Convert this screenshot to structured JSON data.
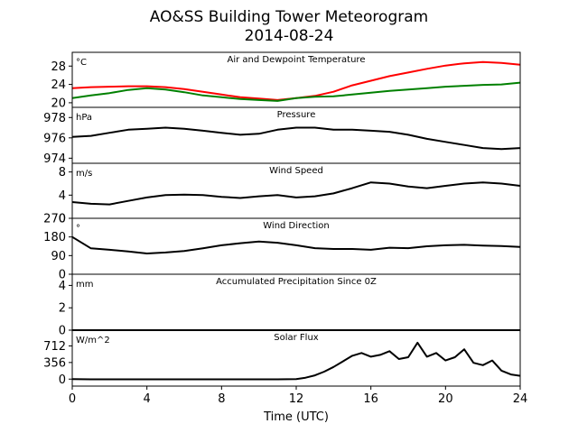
{
  "figure": {
    "title_line1": "AO&SS Building Tower Meteorogram",
    "title_line2": "2014-08-24",
    "xlabel": "Time (UTC)",
    "xticks": [
      "0",
      "4",
      "8",
      "12",
      "16",
      "20",
      "24"
    ]
  },
  "chart_data": [
    {
      "type": "line",
      "title": "Air and Dewpoint Temperature",
      "unit": "°C",
      "ylim": [
        19,
        31
      ],
      "yticks": [
        "20",
        "24",
        "28"
      ],
      "x": [
        0,
        1,
        2,
        3,
        4,
        5,
        6,
        7,
        8,
        9,
        10,
        11,
        12,
        13,
        14,
        15,
        16,
        17,
        18,
        19,
        20,
        21,
        22,
        23,
        24
      ],
      "series": [
        {
          "color": "#ff0000",
          "values": [
            23.2,
            23.4,
            23.5,
            23.6,
            23.6,
            23.4,
            23.0,
            22.4,
            21.8,
            21.2,
            20.9,
            20.6,
            21.0,
            21.5,
            22.4,
            23.8,
            24.8,
            25.8,
            26.6,
            27.4,
            28.1,
            28.6,
            28.9,
            28.7,
            28.3
          ]
        },
        {
          "color": "#008000",
          "values": [
            21.0,
            21.6,
            22.1,
            22.8,
            23.2,
            22.9,
            22.3,
            21.6,
            21.2,
            20.8,
            20.6,
            20.4,
            21.0,
            21.3,
            21.4,
            21.8,
            22.2,
            22.6,
            22.9,
            23.2,
            23.5,
            23.7,
            23.9,
            24.0,
            24.4
          ]
        }
      ]
    },
    {
      "type": "line",
      "title": "Pressure",
      "unit": "hPa",
      "ylim": [
        973.5,
        979
      ],
      "yticks": [
        "974",
        "976",
        "978"
      ],
      "x": [
        0,
        1,
        2,
        3,
        4,
        5,
        6,
        7,
        8,
        9,
        10,
        11,
        12,
        13,
        14,
        15,
        16,
        17,
        18,
        19,
        20,
        21,
        22,
        23,
        24
      ],
      "series": [
        {
          "color": "#000000",
          "values": [
            976.1,
            976.2,
            976.5,
            976.8,
            976.9,
            977.0,
            976.9,
            976.7,
            976.5,
            976.3,
            976.4,
            976.8,
            977.0,
            977.0,
            976.8,
            976.8,
            976.7,
            976.6,
            976.3,
            975.9,
            975.6,
            975.3,
            975.0,
            974.9,
            975.0
          ]
        }
      ]
    },
    {
      "type": "line",
      "title": "Wind Speed",
      "unit": "m/s",
      "ylim": [
        0,
        9.5
      ],
      "yticks": [
        "0",
        "4",
        "8"
      ],
      "x": [
        0,
        1,
        2,
        3,
        4,
        5,
        6,
        7,
        8,
        9,
        10,
        11,
        12,
        13,
        14,
        15,
        16,
        17,
        18,
        19,
        20,
        21,
        22,
        23,
        24
      ],
      "series": [
        {
          "color": "#000000",
          "values": [
            2.8,
            2.5,
            2.4,
            3.0,
            3.6,
            4.0,
            4.1,
            4.0,
            3.7,
            3.5,
            3.8,
            4.0,
            3.6,
            3.8,
            4.3,
            5.2,
            6.2,
            6.0,
            5.5,
            5.2,
            5.6,
            6.0,
            6.2,
            6.0,
            5.6
          ]
        }
      ]
    },
    {
      "type": "line",
      "title": "Wind Direction",
      "unit": "°",
      "ylim": [
        0,
        270
      ],
      "yticks": [
        "0",
        "90",
        "180",
        "270"
      ],
      "x": [
        0,
        1,
        2,
        3,
        4,
        5,
        6,
        7,
        8,
        9,
        10,
        11,
        12,
        13,
        14,
        15,
        16,
        17,
        18,
        19,
        20,
        21,
        22,
        23,
        24
      ],
      "series": [
        {
          "color": "#000000",
          "values": [
            180,
            125,
            118,
            110,
            100,
            105,
            112,
            125,
            140,
            150,
            158,
            152,
            140,
            126,
            122,
            122,
            118,
            128,
            126,
            135,
            140,
            142,
            138,
            136,
            132
          ]
        }
      ]
    },
    {
      "type": "line",
      "title": "Accumulated Precipitation Since 0Z",
      "unit": "mm",
      "ylim": [
        0,
        5
      ],
      "yticks": [
        "0",
        "2",
        "4"
      ],
      "x": [
        0,
        24
      ],
      "series": [
        {
          "color": "#000000",
          "values": [
            0,
            0
          ]
        }
      ]
    },
    {
      "type": "line",
      "title": "Solar Flux",
      "unit": "W/m^2",
      "ylim": [
        -150,
        1050
      ],
      "yticks": [
        "0",
        "356",
        "712"
      ],
      "x": [
        0,
        1,
        2,
        3,
        4,
        5,
        6,
        7,
        8,
        9,
        10,
        11,
        12,
        12.5,
        13,
        13.5,
        14,
        14.5,
        15,
        15.5,
        16,
        16.5,
        17,
        17.5,
        18,
        18.5,
        19,
        19.5,
        20,
        20.5,
        21,
        21.5,
        22,
        22.5,
        23,
        23.5,
        24
      ],
      "series": [
        {
          "color": "#000000",
          "values": [
            0,
            -5,
            -5,
            -5,
            -5,
            -5,
            -5,
            -5,
            -5,
            -5,
            -5,
            -5,
            0,
            30,
            80,
            160,
            260,
            380,
            500,
            560,
            480,
            520,
            600,
            430,
            470,
            780,
            480,
            560,
            400,
            470,
            640,
            350,
            300,
            400,
            180,
            100,
            70
          ]
        }
      ]
    }
  ]
}
